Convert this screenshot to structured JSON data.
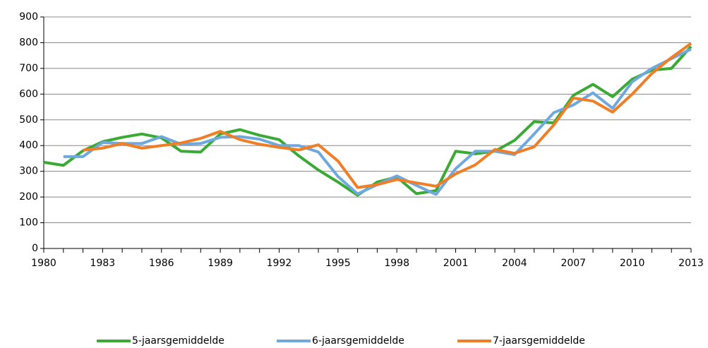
{
  "chart_data": {
    "type": "line",
    "x": [
      1980,
      1981,
      1982,
      1983,
      1984,
      1985,
      1986,
      1987,
      1988,
      1989,
      1990,
      1991,
      1992,
      1993,
      1994,
      1995,
      1996,
      1997,
      1998,
      1999,
      2000,
      2001,
      2002,
      2003,
      2004,
      2005,
      2006,
      2007,
      2008,
      2009,
      2010,
      2011,
      2012,
      2013
    ],
    "xlim": [
      1980,
      2013
    ],
    "xticks": [
      1980,
      1983,
      1986,
      1989,
      1992,
      1995,
      1998,
      2001,
      2004,
      2007,
      2010,
      2013
    ],
    "ylim": [
      0,
      900
    ],
    "yticks": [
      0,
      100,
      200,
      300,
      400,
      500,
      600,
      700,
      800,
      900
    ],
    "grid": true,
    "legend": "bottom",
    "series": [
      {
        "name": "5-jaarsgemiddelde",
        "color": "#3aaa35",
        "values": [
          335,
          323,
          380,
          415,
          432,
          445,
          430,
          378,
          375,
          445,
          462,
          440,
          423,
          360,
          305,
          258,
          207,
          258,
          278,
          213,
          225,
          378,
          368,
          378,
          420,
          493,
          488,
          595,
          638,
          590,
          658,
          693,
          700,
          785
        ]
      },
      {
        "name": "6-jaarsgemiddelde",
        "color": "#6fa8dc",
        "values": [
          null,
          357,
          357,
          412,
          408,
          408,
          435,
          405,
          408,
          432,
          435,
          425,
          400,
          400,
          375,
          280,
          212,
          248,
          282,
          245,
          210,
          310,
          378,
          378,
          365,
          445,
          528,
          558,
          605,
          545,
          648,
          700,
          738,
          775
        ]
      },
      {
        "name": "7-jaarsgemiddelde",
        "color": "#f07e26",
        "values": [
          null,
          null,
          382,
          390,
          408,
          390,
          400,
          410,
          428,
          455,
          423,
          405,
          393,
          383,
          403,
          340,
          237,
          248,
          268,
          255,
          242,
          290,
          325,
          385,
          370,
          395,
          480,
          585,
          573,
          530,
          600,
          680,
          742,
          797
        ]
      }
    ]
  }
}
